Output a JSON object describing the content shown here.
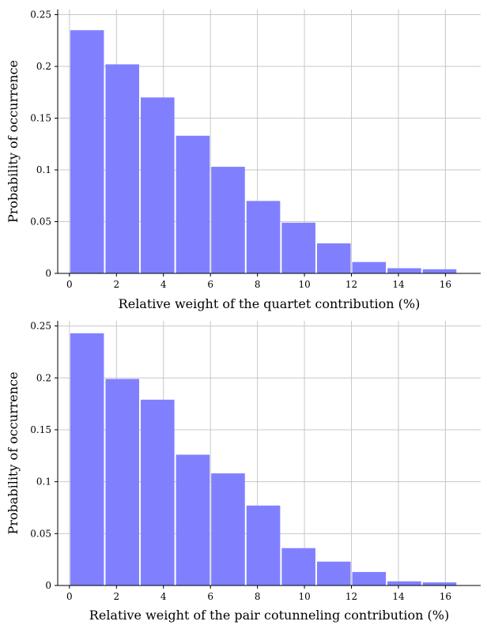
{
  "chart_data": [
    {
      "type": "bar",
      "bin_edges": [
        0,
        1.5,
        3,
        4.5,
        6,
        7.5,
        9,
        10.5,
        12,
        13.5,
        15,
        16.5
      ],
      "values": [
        0.235,
        0.202,
        0.17,
        0.133,
        0.103,
        0.07,
        0.049,
        0.029,
        0.011,
        0.005,
        0.004
      ],
      "title": "",
      "xlabel": "Relative weight of the quartet contribution (%)",
      "ylabel": "Probability of occurrence",
      "xlim": [
        -0.5,
        17.5
      ],
      "ylim": [
        0,
        0.255
      ],
      "xticks": [
        0,
        2,
        4,
        6,
        8,
        10,
        12,
        14,
        16
      ],
      "xtick_labels": [
        "0",
        "2",
        "4",
        "6",
        "8",
        "10",
        "12",
        "14",
        "16"
      ],
      "yticks": [
        0,
        0.05,
        0.1,
        0.15,
        0.2,
        0.25
      ],
      "ytick_labels": [
        "0",
        "0.05",
        "0.1",
        "0.15",
        "0.2",
        "0.25"
      ],
      "bar_color": "#8080ff",
      "grid": true
    },
    {
      "type": "bar",
      "bin_edges": [
        0,
        1.5,
        3,
        4.5,
        6,
        7.5,
        9,
        10.5,
        12,
        13.5,
        15,
        16.5
      ],
      "values": [
        0.243,
        0.199,
        0.179,
        0.126,
        0.108,
        0.077,
        0.036,
        0.023,
        0.013,
        0.004,
        0.003
      ],
      "title": "",
      "xlabel": "Relative weight of the pair cotunneling contribution (%)",
      "ylabel": "Probability of occurrence",
      "xlim": [
        -0.5,
        17.5
      ],
      "ylim": [
        0,
        0.255
      ],
      "xticks": [
        0,
        2,
        4,
        6,
        8,
        10,
        12,
        14,
        16
      ],
      "xtick_labels": [
        "0",
        "2",
        "4",
        "6",
        "8",
        "10",
        "12",
        "14",
        "16"
      ],
      "yticks": [
        0,
        0.05,
        0.1,
        0.15,
        0.2,
        0.25
      ],
      "ytick_labels": [
        "0",
        "0.05",
        "0.1",
        "0.15",
        "0.2",
        "0.25"
      ],
      "bar_color": "#8080ff",
      "grid": true
    }
  ]
}
